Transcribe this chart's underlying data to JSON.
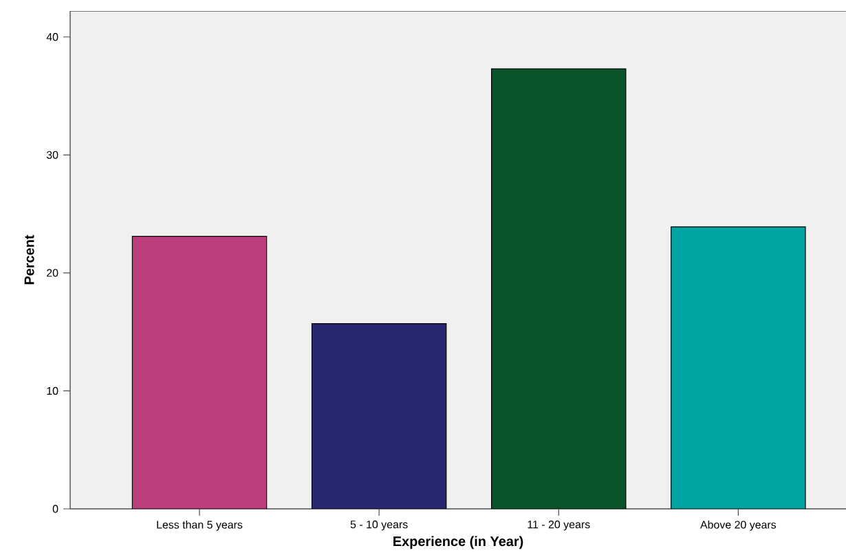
{
  "chart_data": {
    "type": "bar",
    "xlabel": "Experience (in Year)",
    "ylabel": "Percent",
    "categories": [
      "Less than 5 years",
      "5 - 10 years",
      "11 - 20 years",
      "Above 20 years"
    ],
    "values": [
      23.1,
      15.7,
      37.3,
      23.9
    ],
    "colors": [
      "#bc3e7c",
      "#28276f",
      "#0b532b",
      "#00a5a2"
    ],
    "ylim": [
      0,
      42.2
    ],
    "yticks": [
      0,
      10,
      20,
      30,
      40
    ],
    "grid": false
  }
}
